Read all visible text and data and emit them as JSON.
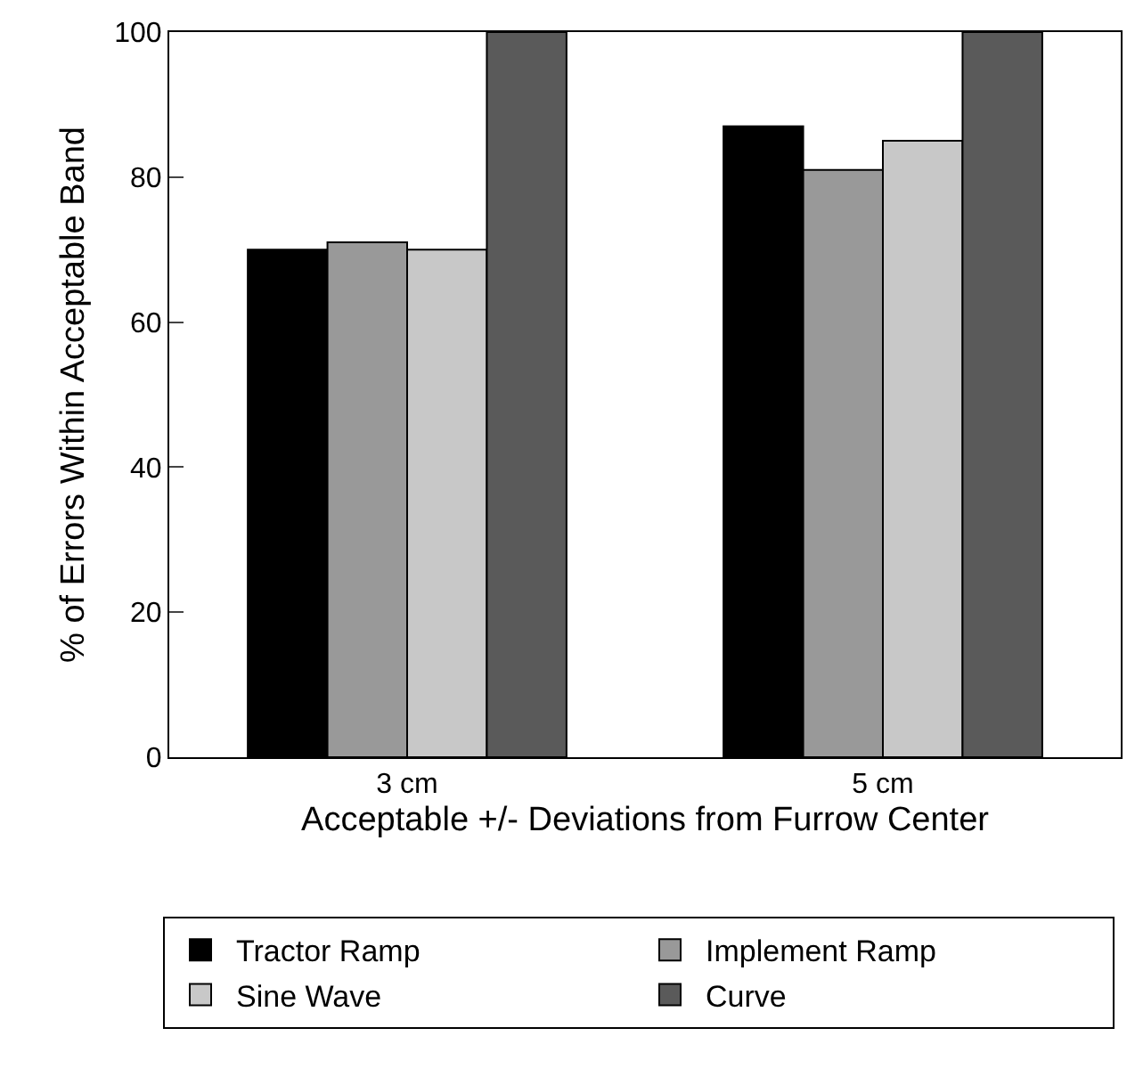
{
  "chart_data": {
    "type": "bar",
    "xlabel": "Acceptable +/- Deviations from Furrow Center",
    "ylabel": "% of Errors Within Acceptable Band",
    "categories": [
      "3 cm",
      "5 cm"
    ],
    "series": [
      {
        "name": "Tractor Ramp",
        "color": "#000000",
        "values": [
          70,
          87
        ]
      },
      {
        "name": "Implement Ramp",
        "color": "#999999",
        "values": [
          71,
          81
        ]
      },
      {
        "name": "Sine Wave",
        "color": "#c8c8c8",
        "values": [
          70,
          85
        ]
      },
      {
        "name": "Curve",
        "color": "#5a5a5a",
        "values": [
          100,
          100
        ]
      }
    ],
    "ylim": [
      0,
      100
    ],
    "yticks": [
      0,
      20,
      40,
      60,
      80,
      100
    ],
    "grid": false,
    "legend": "bottom"
  }
}
